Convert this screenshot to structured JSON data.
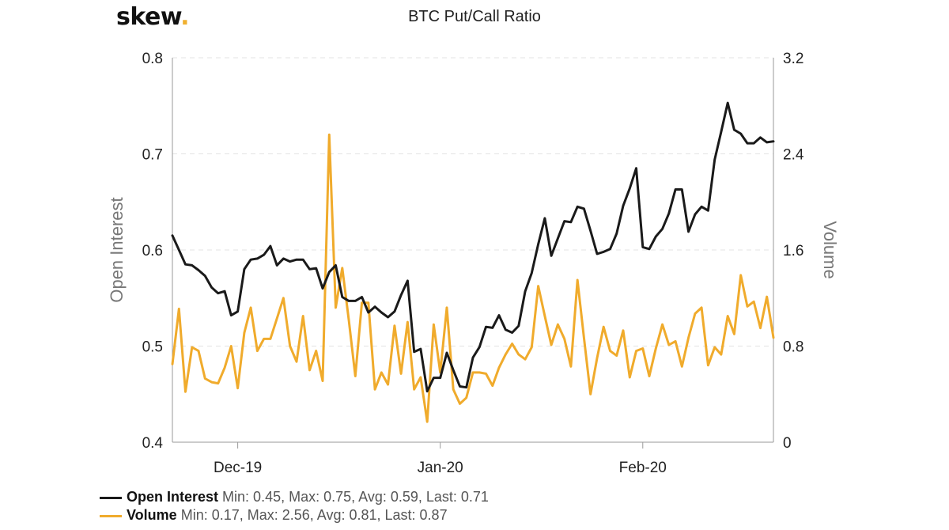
{
  "logo": {
    "text": "skew",
    "dot": "."
  },
  "chart_data": {
    "type": "line",
    "title": "BTC Put/Call Ratio",
    "ylabel_left": "Open Interest",
    "ylabel_right": "Volume",
    "ylim_left": [
      0.4,
      0.8
    ],
    "ylim_right": [
      0,
      3.2
    ],
    "yticks_left": [
      "0.4",
      "0.5",
      "0.6",
      "0.7",
      "0.8"
    ],
    "yticks_right": [
      "0",
      "0.8",
      "1.6",
      "2.4",
      "3.2"
    ],
    "xticks": [
      {
        "label": "Dec-19",
        "date": "2019-12-01"
      },
      {
        "label": "Jan-20",
        "date": "2020-01-01"
      },
      {
        "label": "Feb-20",
        "date": "2020-02-01"
      }
    ],
    "grid": true,
    "legend_position": "bottom-left",
    "series": [
      {
        "name": "Open Interest",
        "axis": "left",
        "color": "#1a1a1a",
        "stats": "Min: 0.45, Max: 0.75, Avg: 0.59, Last: 0.71",
        "points": [
          [
            "2019-11-21",
            0.615
          ],
          [
            "2019-11-22",
            0.6
          ],
          [
            "2019-11-23",
            0.585
          ],
          [
            "2019-11-24",
            0.584
          ],
          [
            "2019-11-25",
            0.579
          ],
          [
            "2019-11-26",
            0.573
          ],
          [
            "2019-11-27",
            0.561
          ],
          [
            "2019-11-28",
            0.555
          ],
          [
            "2019-11-29",
            0.557
          ],
          [
            "2019-11-30",
            0.532
          ],
          [
            "2019-12-01",
            0.536
          ],
          [
            "2019-12-02",
            0.58
          ],
          [
            "2019-12-03",
            0.59
          ],
          [
            "2019-12-04",
            0.591
          ],
          [
            "2019-12-05",
            0.595
          ],
          [
            "2019-12-06",
            0.604
          ],
          [
            "2019-12-07",
            0.584
          ],
          [
            "2019-12-08",
            0.591
          ],
          [
            "2019-12-09",
            0.588
          ],
          [
            "2019-12-10",
            0.59
          ],
          [
            "2019-12-11",
            0.59
          ],
          [
            "2019-12-12",
            0.58
          ],
          [
            "2019-12-13",
            0.581
          ],
          [
            "2019-12-14",
            0.56
          ],
          [
            "2019-12-15",
            0.577
          ],
          [
            "2019-12-16",
            0.584
          ],
          [
            "2019-12-17",
            0.551
          ],
          [
            "2019-12-18",
            0.547
          ],
          [
            "2019-12-19",
            0.547
          ],
          [
            "2019-12-20",
            0.551
          ],
          [
            "2019-12-21",
            0.535
          ],
          [
            "2019-12-22",
            0.541
          ],
          [
            "2019-12-23",
            0.535
          ],
          [
            "2019-12-24",
            0.53
          ],
          [
            "2019-12-25",
            0.536
          ],
          [
            "2019-12-26",
            0.553
          ],
          [
            "2019-12-27",
            0.568
          ],
          [
            "2019-12-28",
            0.494
          ],
          [
            "2019-12-29",
            0.497
          ],
          [
            "2019-12-30",
            0.453
          ],
          [
            "2019-12-31",
            0.467
          ],
          [
            "2020-01-01",
            0.467
          ],
          [
            "2020-01-02",
            0.493
          ],
          [
            "2020-01-03",
            0.475
          ],
          [
            "2020-01-04",
            0.458
          ],
          [
            "2020-01-05",
            0.457
          ],
          [
            "2020-01-06",
            0.488
          ],
          [
            "2020-01-07",
            0.499
          ],
          [
            "2020-01-08",
            0.52
          ],
          [
            "2020-01-09",
            0.519
          ],
          [
            "2020-01-10",
            0.532
          ],
          [
            "2020-01-11",
            0.517
          ],
          [
            "2020-01-12",
            0.514
          ],
          [
            "2020-01-13",
            0.521
          ],
          [
            "2020-01-14",
            0.557
          ],
          [
            "2020-01-15",
            0.576
          ],
          [
            "2020-01-16",
            0.606
          ],
          [
            "2020-01-17",
            0.633
          ],
          [
            "2020-01-18",
            0.594
          ],
          [
            "2020-01-19",
            0.612
          ],
          [
            "2020-01-20",
            0.63
          ],
          [
            "2020-01-21",
            0.629
          ],
          [
            "2020-01-22",
            0.645
          ],
          [
            "2020-01-23",
            0.643
          ],
          [
            "2020-01-24",
            0.62
          ],
          [
            "2020-01-25",
            0.596
          ],
          [
            "2020-01-26",
            0.598
          ],
          [
            "2020-01-27",
            0.601
          ],
          [
            "2020-01-28",
            0.617
          ],
          [
            "2020-01-29",
            0.646
          ],
          [
            "2020-01-30",
            0.664
          ],
          [
            "2020-01-31",
            0.685
          ],
          [
            "2020-02-01",
            0.603
          ],
          [
            "2020-02-02",
            0.601
          ],
          [
            "2020-02-03",
            0.614
          ],
          [
            "2020-02-04",
            0.622
          ],
          [
            "2020-02-05",
            0.638
          ],
          [
            "2020-02-06",
            0.663
          ],
          [
            "2020-02-07",
            0.663
          ],
          [
            "2020-02-08",
            0.619
          ],
          [
            "2020-02-09",
            0.637
          ],
          [
            "2020-02-10",
            0.645
          ],
          [
            "2020-02-11",
            0.641
          ],
          [
            "2020-02-12",
            0.694
          ],
          [
            "2020-02-13",
            0.723
          ],
          [
            "2020-02-14",
            0.753
          ],
          [
            "2020-02-15",
            0.725
          ],
          [
            "2020-02-16",
            0.721
          ],
          [
            "2020-02-17",
            0.711
          ],
          [
            "2020-02-18",
            0.711
          ],
          [
            "2020-02-19",
            0.717
          ],
          [
            "2020-02-20",
            0.712
          ],
          [
            "2020-02-21",
            0.713
          ]
        ]
      },
      {
        "name": "Volume",
        "axis": "right",
        "color": "#f0ab2c",
        "stats": "Min: 0.17, Max: 2.56, Avg: 0.81, Last: 0.87",
        "points": [
          [
            "2019-11-21",
            0.65
          ],
          [
            "2019-11-22",
            1.11
          ],
          [
            "2019-11-23",
            0.42
          ],
          [
            "2019-11-24",
            0.79
          ],
          [
            "2019-11-25",
            0.76
          ],
          [
            "2019-11-26",
            0.53
          ],
          [
            "2019-11-27",
            0.5
          ],
          [
            "2019-11-28",
            0.49
          ],
          [
            "2019-11-29",
            0.62
          ],
          [
            "2019-11-30",
            0.8
          ],
          [
            "2019-12-01",
            0.45
          ],
          [
            "2019-12-02",
            0.91
          ],
          [
            "2019-12-03",
            1.12
          ],
          [
            "2019-12-04",
            0.76
          ],
          [
            "2019-12-05",
            0.86
          ],
          [
            "2019-12-06",
            0.86
          ],
          [
            "2019-12-07",
            1.03
          ],
          [
            "2019-12-08",
            1.2
          ],
          [
            "2019-12-09",
            0.8
          ],
          [
            "2019-12-10",
            0.67
          ],
          [
            "2019-12-11",
            1.05
          ],
          [
            "2019-12-12",
            0.6
          ],
          [
            "2019-12-13",
            0.76
          ],
          [
            "2019-12-14",
            0.51
          ],
          [
            "2019-12-15",
            2.56
          ],
          [
            "2019-12-16",
            1.12
          ],
          [
            "2019-12-17",
            1.45
          ],
          [
            "2019-12-18",
            1.02
          ],
          [
            "2019-12-19",
            0.55
          ],
          [
            "2019-12-20",
            1.16
          ],
          [
            "2019-12-21",
            1.16
          ],
          [
            "2019-12-22",
            0.44
          ],
          [
            "2019-12-23",
            0.58
          ],
          [
            "2019-12-24",
            0.48
          ],
          [
            "2019-12-25",
            0.97
          ],
          [
            "2019-12-26",
            0.57
          ],
          [
            "2019-12-27",
            1.0
          ],
          [
            "2019-12-28",
            0.44
          ],
          [
            "2019-12-29",
            0.54
          ],
          [
            "2019-12-30",
            0.17
          ],
          [
            "2019-12-31",
            0.98
          ],
          [
            "2020-01-01",
            0.58
          ],
          [
            "2020-01-02",
            1.12
          ],
          [
            "2020-01-03",
            0.44
          ],
          [
            "2020-01-04",
            0.32
          ],
          [
            "2020-01-05",
            0.37
          ],
          [
            "2020-01-06",
            0.58
          ],
          [
            "2020-01-07",
            0.58
          ],
          [
            "2020-01-08",
            0.57
          ],
          [
            "2020-01-09",
            0.47
          ],
          [
            "2020-01-10",
            0.62
          ],
          [
            "2020-01-11",
            0.73
          ],
          [
            "2020-01-12",
            0.82
          ],
          [
            "2020-01-13",
            0.73
          ],
          [
            "2020-01-14",
            0.69
          ],
          [
            "2020-01-15",
            0.79
          ],
          [
            "2020-01-16",
            1.3
          ],
          [
            "2020-01-17",
            1.05
          ],
          [
            "2020-01-18",
            0.81
          ],
          [
            "2020-01-19",
            0.98
          ],
          [
            "2020-01-20",
            0.86
          ],
          [
            "2020-01-21",
            0.63
          ],
          [
            "2020-01-22",
            1.35
          ],
          [
            "2020-01-23",
            0.87
          ],
          [
            "2020-01-24",
            0.4
          ],
          [
            "2020-01-25",
            0.7
          ],
          [
            "2020-01-26",
            0.96
          ],
          [
            "2020-01-27",
            0.76
          ],
          [
            "2020-01-28",
            0.72
          ],
          [
            "2020-01-29",
            0.93
          ],
          [
            "2020-01-30",
            0.54
          ],
          [
            "2020-01-31",
            0.76
          ],
          [
            "2020-02-01",
            0.78
          ],
          [
            "2020-02-02",
            0.55
          ],
          [
            "2020-02-03",
            0.78
          ],
          [
            "2020-02-04",
            0.98
          ],
          [
            "2020-02-05",
            0.81
          ],
          [
            "2020-02-06",
            0.84
          ],
          [
            "2020-02-07",
            0.63
          ],
          [
            "2020-02-08",
            0.87
          ],
          [
            "2020-02-09",
            1.07
          ],
          [
            "2020-02-10",
            1.12
          ],
          [
            "2020-02-11",
            0.64
          ],
          [
            "2020-02-12",
            0.79
          ],
          [
            "2020-02-13",
            0.73
          ],
          [
            "2020-02-14",
            1.05
          ],
          [
            "2020-02-15",
            0.9
          ],
          [
            "2020-02-16",
            1.39
          ],
          [
            "2020-02-17",
            1.13
          ],
          [
            "2020-02-18",
            1.17
          ],
          [
            "2020-02-19",
            0.95
          ],
          [
            "2020-02-20",
            1.21
          ],
          [
            "2020-02-21",
            0.87
          ]
        ]
      }
    ]
  }
}
